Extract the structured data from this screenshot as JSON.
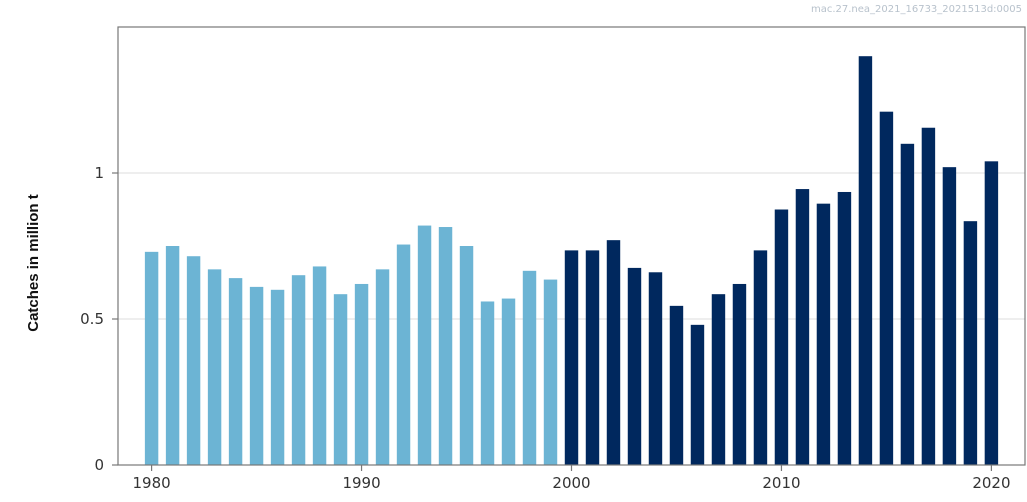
{
  "watermark": "mac.27.nea_2021_16733_2021513d:0005",
  "chart_data": {
    "type": "bar",
    "title": "",
    "xlabel": "",
    "ylabel": "Catches in million t",
    "ylim": [
      0,
      1.5
    ],
    "xlim": [
      1978.4,
      2021.6
    ],
    "grid": "horizontal",
    "yticks": [
      0,
      0.5,
      1
    ],
    "ytick_labels": [
      "0",
      "0.5",
      "1"
    ],
    "xticks": [
      1980,
      1990,
      2000,
      2010,
      2020
    ],
    "xtick_labels": [
      "1980",
      "1990",
      "2000",
      "2010",
      "2020"
    ],
    "colors": {
      "before_2000": "#6cb4d4",
      "from_2000": "#00285e"
    },
    "x": [
      1980,
      1981,
      1982,
      1983,
      1984,
      1985,
      1986,
      1987,
      1988,
      1989,
      1990,
      1991,
      1992,
      1993,
      1994,
      1995,
      1996,
      1997,
      1998,
      1999,
      2000,
      2001,
      2002,
      2003,
      2004,
      2005,
      2006,
      2007,
      2008,
      2009,
      2010,
      2011,
      2012,
      2013,
      2014,
      2015,
      2016,
      2017,
      2018,
      2019,
      2020
    ],
    "values": [
      0.73,
      0.75,
      0.715,
      0.67,
      0.64,
      0.61,
      0.6,
      0.65,
      0.68,
      0.585,
      0.62,
      0.67,
      0.755,
      0.82,
      0.815,
      0.75,
      0.56,
      0.57,
      0.665,
      0.635,
      0.735,
      0.735,
      0.77,
      0.675,
      0.66,
      0.545,
      0.48,
      0.585,
      0.62,
      0.735,
      0.875,
      0.945,
      0.895,
      0.935,
      1.4,
      1.21,
      1.1,
      1.155,
      1.02,
      0.835,
      1.04
    ]
  }
}
